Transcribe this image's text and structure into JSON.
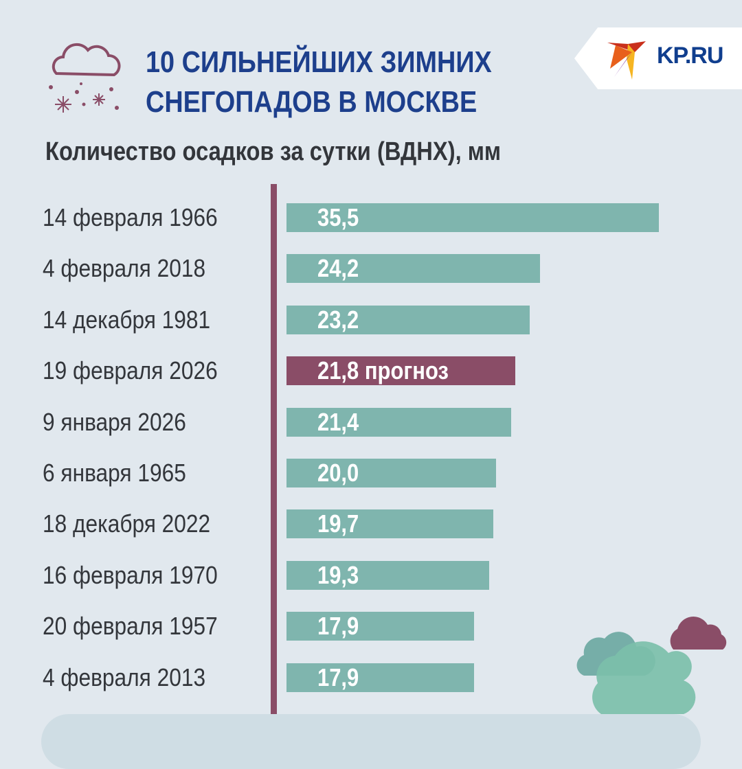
{
  "header": {
    "title_line1": "10 СИЛЬНЕЙШИХ ЗИМНИХ",
    "title_line2": "СНЕГОПАДОВ В МОСКВЕ",
    "logo": "KP.RU"
  },
  "colors": {
    "bar": "#7fb5ae",
    "highlight": "#8a4d67",
    "title": "#1d3f8c",
    "axis": "#8a4d67"
  },
  "chart_data": {
    "type": "bar",
    "orientation": "horizontal",
    "title": "Количество осадков за сутки (ВДНХ), мм",
    "categories": [
      "14 февраля 1966",
      "4 февраля 2018",
      "14 декабря 1981",
      "19 февраля 2026",
      "9 января 2026",
      "6 января 1965",
      "18 декабря 2022",
      "16 февраля 1970",
      "20 февраля 1957",
      "4 февраля 2013"
    ],
    "values": [
      35.5,
      24.2,
      23.2,
      21.8,
      21.4,
      20.0,
      19.7,
      19.3,
      17.9,
      17.9
    ],
    "value_labels": [
      "35,5",
      "24,2",
      "23,2",
      "21,8 прогноз",
      "21,4",
      "20,0",
      "19,7",
      "19,3",
      "17,9",
      "17,9"
    ],
    "highlight_index": 3,
    "grid": false
  }
}
